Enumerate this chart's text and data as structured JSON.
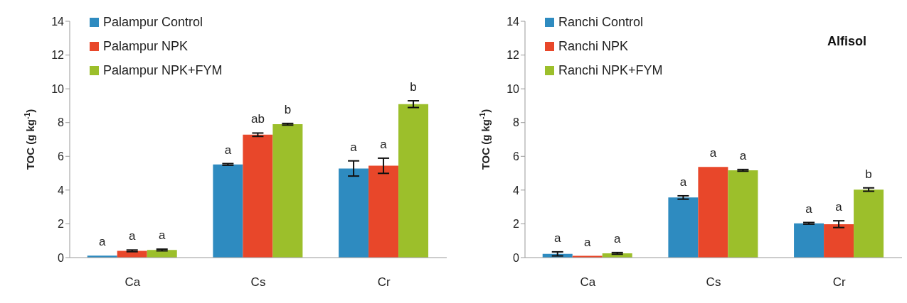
{
  "chart_data": [
    {
      "type": "bar",
      "ylabel": "TOC (g kg$^{-1}$)",
      "categories": [
        "Ca",
        "Cs",
        "Cr"
      ],
      "series": [
        {
          "name": "Palampur Control",
          "color": "#2e8bc0",
          "values": [
            0.12,
            5.52,
            5.28
          ],
          "errors": [
            null,
            0.05,
            0.45
          ],
          "value_labels": [
            "a",
            "a",
            "a"
          ]
        },
        {
          "name": "Palampur NPK",
          "color": "#e8472a",
          "values": [
            0.4,
            7.28,
            5.44
          ],
          "errors": [
            0.05,
            0.1,
            0.45
          ],
          "value_labels": [
            "a",
            "ab",
            "a"
          ]
        },
        {
          "name": "Palampur NPK+FYM",
          "color": "#9cbf2b",
          "values": [
            0.45,
            7.9,
            9.09
          ],
          "errors": [
            0.05,
            0.05,
            0.2
          ],
          "value_labels": [
            "a",
            "b",
            "b"
          ]
        }
      ],
      "ylim": [
        0,
        14
      ],
      "yticks": [
        0,
        2,
        4,
        6,
        8,
        10,
        12,
        14
      ],
      "grid": false,
      "legend": "top left"
    },
    {
      "type": "bar",
      "title": "Alfisol",
      "ylabel": "TOC (g kg$^{-1}$)",
      "categories": [
        "Ca",
        "Cs",
        "Cr"
      ],
      "series": [
        {
          "name": "Ranchi Control",
          "color": "#2e8bc0",
          "values": [
            0.22,
            3.56,
            2.03
          ],
          "errors": [
            0.12,
            0.1,
            0.05
          ],
          "value_labels": [
            "a",
            "a",
            "a"
          ]
        },
        {
          "name": "Ranchi NPK",
          "color": "#e8472a",
          "values": [
            0.1,
            5.37,
            1.98
          ],
          "errors": [
            null,
            null,
            0.2
          ],
          "value_labels": [
            "a",
            "a",
            "a"
          ]
        },
        {
          "name": "Ranchi NPK+FYM",
          "color": "#9cbf2b",
          "values": [
            0.25,
            5.17,
            4.03
          ],
          "errors": [
            0.05,
            0.05,
            0.1
          ],
          "value_labels": [
            "a",
            "a",
            "b"
          ]
        }
      ],
      "ylim": [
        0,
        14
      ],
      "yticks": [
        0,
        2,
        4,
        6,
        8,
        10,
        12,
        14
      ],
      "grid": false,
      "legend": "top left"
    }
  ]
}
